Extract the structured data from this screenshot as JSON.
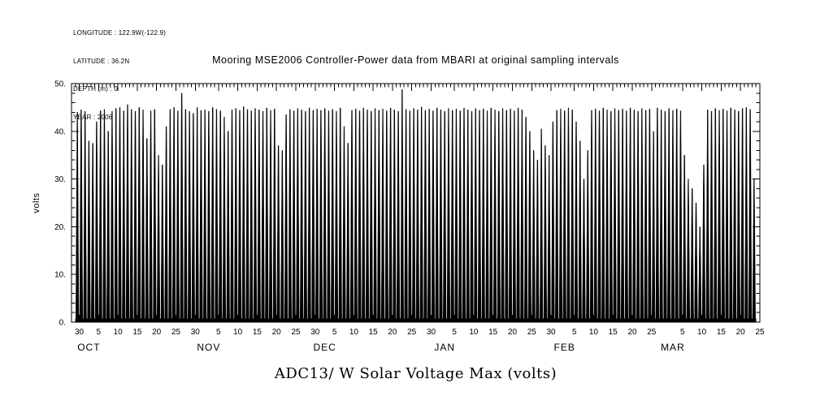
{
  "meta": {
    "longitude": "LONGITUDE : 122.9W(-122.9)",
    "latitude": "LATITUDE : 36.2N",
    "depth": "DEPTH (m) : 0",
    "year": "YEAR : 2006"
  },
  "title": "Mooring MSE2006 Controller-Power data from MBARI at original sampling intervals",
  "bottom_title": "ADC13/ W Solar Voltage Max (volts)",
  "chart_data": {
    "type": "line",
    "title": "Mooring MSE2006 Controller-Power data from MBARI at original sampling intervals",
    "xlabel": "ADC13/ W Solar Voltage Max (volts)",
    "ylabel": "volts",
    "ylim": [
      0,
      50
    ],
    "y_tick_labels": [
      "0.",
      "10.",
      "20.",
      "30.",
      "40.",
      "50."
    ],
    "grid": false,
    "axis_color": "#000000",
    "line_color": "#000000",
    "background_color": "#ffffff",
    "x_start": "2006-09-28",
    "x_end": "2007-03-25",
    "x_major_tick_every_days": 5,
    "x_minor_tick_every_days": 1,
    "y_minor_tick_step": 2,
    "month_labels": {
      "1": "JAN",
      "2": "FEB",
      "3": "MAR",
      "10": "OCT",
      "11": "NOV",
      "12": "DEC"
    },
    "series": [
      {
        "name": "ADC13/ W Solar Voltage Max (daily max envelope, volts)",
        "start_date": "2006-09-29",
        "values": [
          44.0,
          44.5,
          44.2,
          38.0,
          37.5,
          42.0,
          44.3,
          44.6,
          40.0,
          44.2,
          44.8,
          45.0,
          44.3,
          45.6,
          44.6,
          44.2,
          45.0,
          44.5,
          38.5,
          44.3,
          44.6,
          35.0,
          33.0,
          41.0,
          44.6,
          45.0,
          44.3,
          48.0,
          44.6,
          44.2,
          43.8,
          45.0,
          44.4,
          44.5,
          44.2,
          45.0,
          44.6,
          44.3,
          43.0,
          40.0,
          44.5,
          44.8,
          44.4,
          45.2,
          44.6,
          44.3,
          44.8,
          44.5,
          44.2,
          44.9,
          44.4,
          44.7,
          37.0,
          36.0,
          43.5,
          44.6,
          44.3,
          44.8,
          44.5,
          44.2,
          44.9,
          44.4,
          44.7,
          44.4,
          44.8,
          44.3,
          44.6,
          44.2,
          44.9,
          41.0,
          37.5,
          44.4,
          44.7,
          44.3,
          44.9,
          44.5,
          44.2,
          44.8,
          44.4,
          44.7,
          44.3,
          44.9,
          44.5,
          44.2,
          48.8,
          44.6,
          44.3,
          44.8,
          44.5,
          45.1,
          44.4,
          44.7,
          44.3,
          44.9,
          44.5,
          44.2,
          44.8,
          44.4,
          44.7,
          44.3,
          44.9,
          44.5,
          44.2,
          44.8,
          44.4,
          44.7,
          44.3,
          44.9,
          44.5,
          44.2,
          44.8,
          44.4,
          44.7,
          44.3,
          44.9,
          44.5,
          43.0,
          40.0,
          36.0,
          34.0,
          40.5,
          37.0,
          35.0,
          42.0,
          44.4,
          44.7,
          44.3,
          44.9,
          44.5,
          42.0,
          38.0,
          30.0,
          36.0,
          44.4,
          44.7,
          44.3,
          44.9,
          44.5,
          44.2,
          44.8,
          44.4,
          44.7,
          44.3,
          44.9,
          44.5,
          44.2,
          44.8,
          44.4,
          44.7,
          40.0,
          44.9,
          44.5,
          44.2,
          44.8,
          44.4,
          44.7,
          44.3,
          35.0,
          30.0,
          28.0,
          25.0,
          20.0,
          33.0,
          44.5,
          44.2,
          44.8,
          44.4,
          44.7,
          44.3,
          44.9,
          44.5,
          44.2,
          44.8,
          45.0,
          44.6,
          30.0
        ]
      }
    ]
  }
}
